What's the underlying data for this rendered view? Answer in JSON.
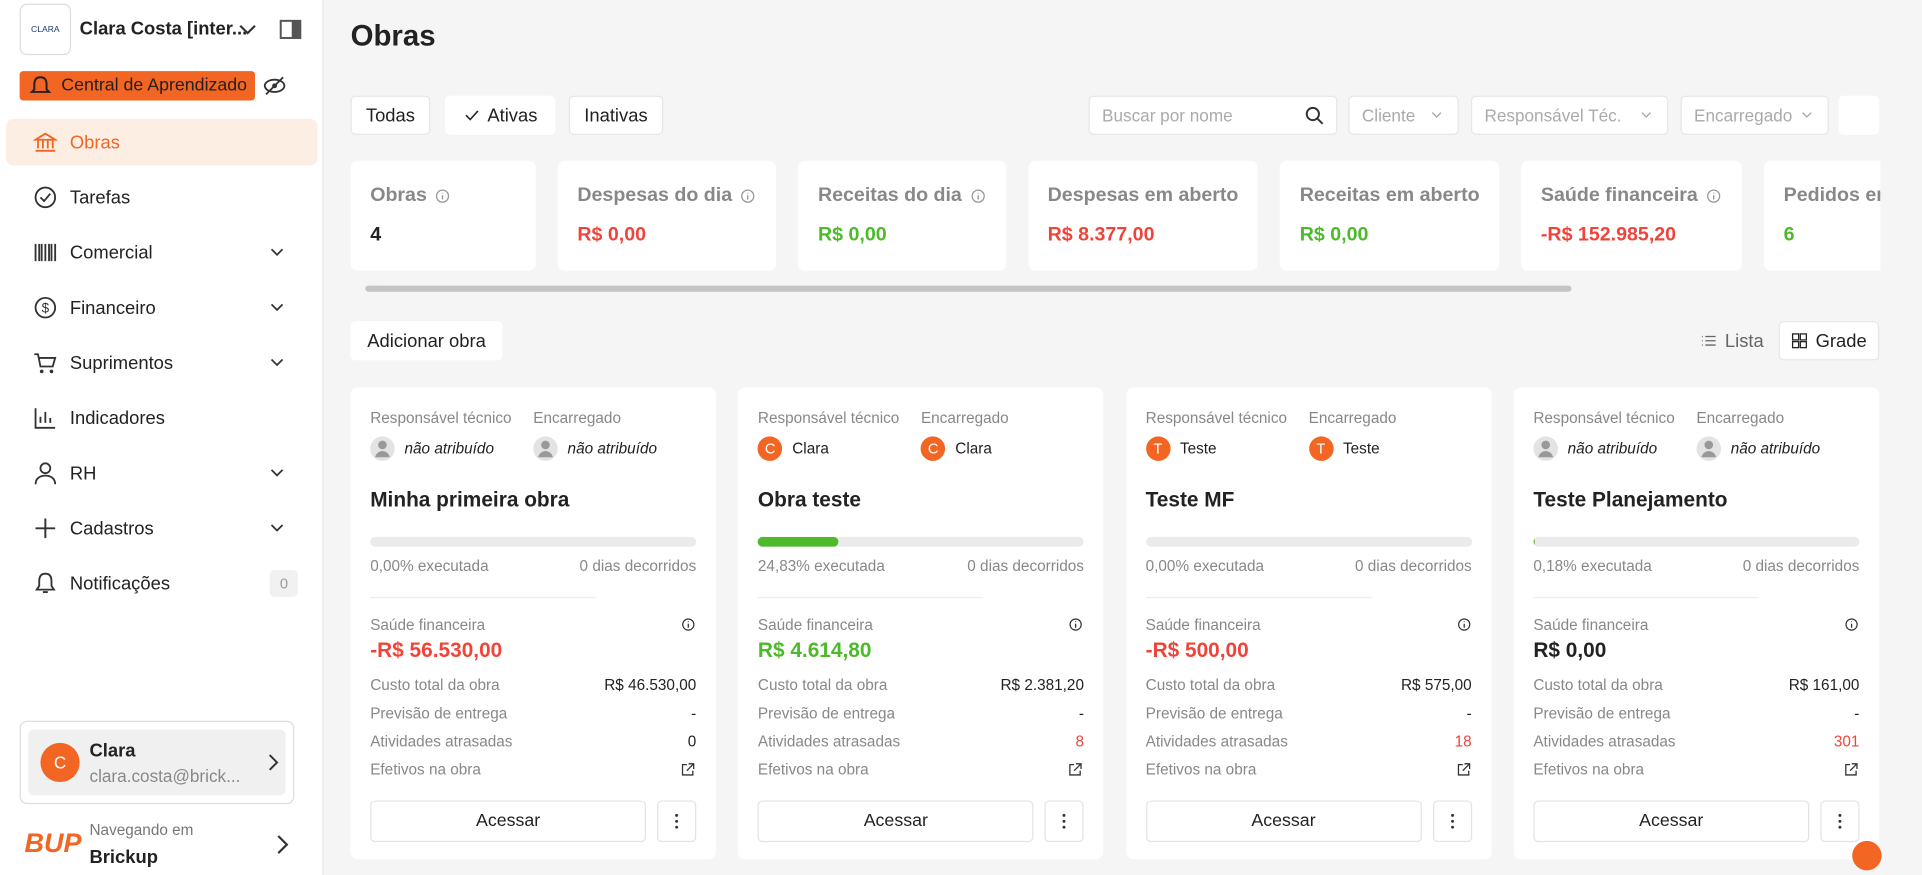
{
  "sidebar": {
    "org_logo": "CLARA",
    "org_name": "Clara Costa [inter...",
    "learning": "Central de Aprendizado",
    "menu": [
      {
        "label": "Obras",
        "icon": "bank",
        "active": true
      },
      {
        "label": "Tarefas",
        "icon": "check"
      },
      {
        "label": "Comercial",
        "icon": "barcode",
        "expand": true
      },
      {
        "label": "Financeiro",
        "icon": "dollar",
        "expand": true
      },
      {
        "label": "Suprimentos",
        "icon": "cart",
        "expand": true
      },
      {
        "label": "Indicadores",
        "icon": "chart"
      },
      {
        "label": "RH",
        "icon": "user",
        "expand": true
      },
      {
        "label": "Cadastros",
        "icon": "plus",
        "expand": true
      },
      {
        "label": "Notificações",
        "icon": "bell",
        "badge": 0
      }
    ],
    "user": {
      "initial": "C",
      "name": "Clara",
      "email": "clara.costa@brick..."
    },
    "nav": {
      "logo": "BUP",
      "label": "Navegando em",
      "company": "Brickup"
    }
  },
  "page": {
    "title": "Obras",
    "tabs": [
      {
        "label": "Todas"
      },
      {
        "label": "Ativas",
        "active": true
      },
      {
        "label": "Inativas"
      }
    ],
    "search_placeholder": "Buscar por nome",
    "filters": [
      "Cliente",
      "Responsável Téc.",
      "Encarregado"
    ],
    "add": "Adicionar obra",
    "views": [
      {
        "label": "Lista"
      },
      {
        "label": "Grade",
        "active": true
      }
    ]
  },
  "summary": [
    {
      "label": "Obras",
      "value": "4",
      "info": true,
      "color": "#222"
    },
    {
      "label": "Despesas do dia",
      "value": "R$ 0,00",
      "info": true,
      "color": "#f0443a"
    },
    {
      "label": "Receitas do dia",
      "value": "R$ 0,00",
      "info": true,
      "color": "#4cba2a"
    },
    {
      "label": "Despesas em aberto",
      "value": "R$ 8.377,00",
      "color": "#f0443a"
    },
    {
      "label": "Receitas em aberto",
      "value": "R$ 0,00",
      "color": "#4cba2a"
    },
    {
      "label": "Saúde financeira",
      "value": "-R$ 152.985,20",
      "info": true,
      "color": "#f0443a"
    },
    {
      "label": "Pedidos em aberto",
      "value": "6",
      "color": "#4cba2a"
    }
  ],
  "projects": [
    {
      "tech_label": "Responsável técnico",
      "tech": "não atribuído",
      "boss_label": "Encarregado",
      "boss": "não atribuído",
      "name": "Minha primeira obra",
      "progress": 0,
      "progress_label": "0,00% executada",
      "days": "0 dias decorridos",
      "health_label": "Saúde financeira",
      "health": "-R$ 56.530,00",
      "health_color": "#f0443a",
      "rows": [
        {
          "label": "Custo total da obra",
          "value": "R$ 46.530,00"
        },
        {
          "label": "Previsão de entrega",
          "value": "-"
        },
        {
          "label": "Atividades atrasadas",
          "value": "0",
          "color": "#222"
        },
        {
          "label": "Efetivos na obra"
        }
      ],
      "access": "Acessar"
    },
    {
      "tech_label": "Responsável técnico",
      "tech": "Clara",
      "tech_initial": "C",
      "boss_label": "Encarregado",
      "boss": "Clara",
      "boss_initial": "C",
      "name": "Obra teste",
      "progress": 24.83,
      "progress_label": "24,83% executada",
      "days": "0 dias decorridos",
      "health_label": "Saúde financeira",
      "health": "R$ 4.614,80",
      "health_color": "#4cba2a",
      "rows": [
        {
          "label": "Custo total da obra",
          "value": "R$ 2.381,20"
        },
        {
          "label": "Previsão de entrega",
          "value": "-"
        },
        {
          "label": "Atividades atrasadas",
          "value": "8",
          "color": "#f0443a"
        },
        {
          "label": "Efetivos na obra"
        }
      ],
      "access": "Acessar"
    },
    {
      "tech_label": "Responsável técnico",
      "tech": "Teste",
      "tech_initial": "T",
      "boss_label": "Encarregado",
      "boss": "Teste",
      "boss_initial": "T",
      "name": "Teste MF",
      "progress": 0,
      "progress_label": "0,00% executada",
      "days": "0 dias decorridos",
      "health_label": "Saúde financeira",
      "health": "-R$ 500,00",
      "health_color": "#f0443a",
      "rows": [
        {
          "label": "Custo total da obra",
          "value": "R$ 575,00"
        },
        {
          "label": "Previsão de entrega",
          "value": "-"
        },
        {
          "label": "Atividades atrasadas",
          "value": "18",
          "color": "#f0443a"
        },
        {
          "label": "Efetivos na obra"
        }
      ],
      "access": "Acessar"
    },
    {
      "tech_label": "Responsável técnico",
      "tech": "não atribuído",
      "boss_label": "Encarregado",
      "boss": "não atribuído",
      "name": "Teste Planejamento",
      "progress": 0.18,
      "progress_label": "0,18% executada",
      "days": "0 dias decorridos",
      "health_label": "Saúde financeira",
      "health": "R$ 0,00",
      "health_color": "#222",
      "rows": [
        {
          "label": "Custo total da obra",
          "value": "R$ 161,00"
        },
        {
          "label": "Previsão de entrega",
          "value": "-"
        },
        {
          "label": "Atividades atrasadas",
          "value": "301",
          "color": "#f0443a"
        },
        {
          "label": "Efetivos na obra"
        }
      ],
      "access": "Acessar"
    }
  ]
}
